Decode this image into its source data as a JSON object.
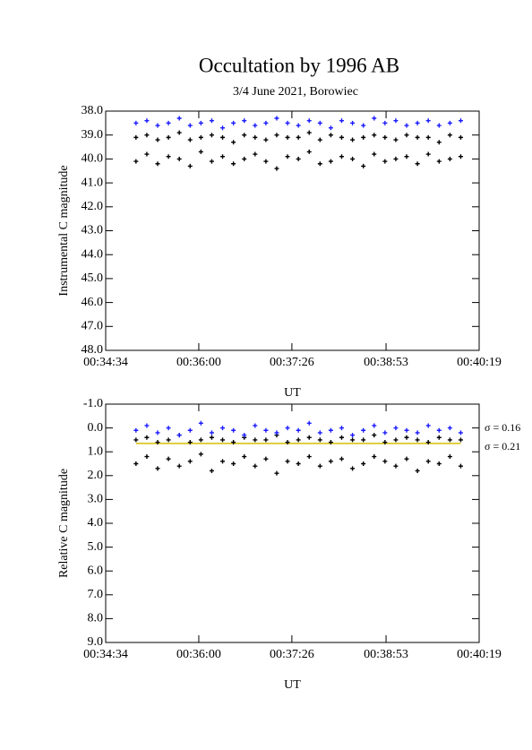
{
  "chart_data": [
    {
      "type": "scatter",
      "title": "Occultation by 1996 AB",
      "subtitle": "3/4 June 2021, Borowiec",
      "xlabel": "UT",
      "ylabel": "Instrumental C magnitude",
      "xlim": [
        2074,
        2419
      ],
      "xticks": [
        {
          "value": 2074,
          "label": "00:34:34"
        },
        {
          "value": 2160,
          "label": "00:36:00"
        },
        {
          "value": 2246,
          "label": "00:37:26"
        },
        {
          "value": 2333,
          "label": "00:38:53"
        },
        {
          "value": 2419,
          "label": "00:40:19"
        }
      ],
      "ylim": [
        48,
        38
      ],
      "yticks": [
        {
          "value": 38,
          "label": "38.0"
        },
        {
          "value": 39,
          "label": "39.0"
        },
        {
          "value": 40,
          "label": "40.0"
        },
        {
          "value": 41,
          "label": "41.0"
        },
        {
          "value": 42,
          "label": "42.0"
        },
        {
          "value": 43,
          "label": "43.0"
        },
        {
          "value": 44,
          "label": "44.0"
        },
        {
          "value": 45,
          "label": "45.0"
        },
        {
          "value": 46,
          "label": "46.0"
        },
        {
          "value": 47,
          "label": "47.0"
        },
        {
          "value": 48,
          "label": "48.0"
        }
      ],
      "x": [
        2102,
        2112,
        2122,
        2132,
        2142,
        2152,
        2162,
        2172,
        2182,
        2192,
        2202,
        2212,
        2222,
        2232,
        2242,
        2252,
        2262,
        2272,
        2282,
        2292,
        2302,
        2312,
        2322,
        2332,
        2342,
        2352,
        2362,
        2372,
        2382,
        2392,
        2402
      ],
      "series": [
        {
          "color": "#000000",
          "values": [
            40.1,
            39.8,
            40.2,
            39.9,
            40.0,
            40.3,
            39.7,
            40.1,
            39.9,
            40.2,
            40.0,
            39.8,
            40.1,
            40.4,
            39.9,
            40.0,
            39.7,
            40.2,
            40.1,
            39.9,
            40.0,
            40.3,
            39.8,
            40.1,
            40.0,
            39.9,
            40.2,
            39.8,
            40.1,
            40.0,
            39.9
          ]
        },
        {
          "color": "#000000",
          "values": [
            39.1,
            39.0,
            39.2,
            39.1,
            38.9,
            39.2,
            39.1,
            39.0,
            39.1,
            39.3,
            39.0,
            39.1,
            39.2,
            39.0,
            39.1,
            39.1,
            38.9,
            39.2,
            39.0,
            39.1,
            39.2,
            39.1,
            39.0,
            39.1,
            39.2,
            39.0,
            39.1,
            39.1,
            39.3,
            39.0,
            39.1
          ]
        },
        {
          "color": "#1a1aff",
          "values": [
            38.5,
            38.4,
            38.6,
            38.5,
            38.3,
            38.6,
            38.5,
            38.4,
            38.7,
            38.5,
            38.4,
            38.6,
            38.5,
            38.3,
            38.5,
            38.6,
            38.4,
            38.5,
            38.7,
            38.4,
            38.5,
            38.6,
            38.3,
            38.5,
            38.4,
            38.6,
            38.5,
            38.4,
            38.6,
            38.5,
            38.4
          ]
        }
      ]
    },
    {
      "type": "scatter",
      "xlabel": "UT",
      "ylabel": "Relative C magnitude",
      "xlim": [
        2074,
        2419
      ],
      "xticks": [
        {
          "value": 2074,
          "label": "00:34:34"
        },
        {
          "value": 2160,
          "label": "00:36:00"
        },
        {
          "value": 2246,
          "label": "00:37:26"
        },
        {
          "value": 2333,
          "label": "00:38:53"
        },
        {
          "value": 2419,
          "label": "00:40:19"
        }
      ],
      "ylim": [
        9,
        -1
      ],
      "yticks": [
        {
          "value": -1,
          "label": "-1.0"
        },
        {
          "value": 0,
          "label": "0.0"
        },
        {
          "value": 1,
          "label": "1.0"
        },
        {
          "value": 2,
          "label": "2.0"
        },
        {
          "value": 3,
          "label": "3.0"
        },
        {
          "value": 4,
          "label": "4.0"
        },
        {
          "value": 5,
          "label": "5.0"
        },
        {
          "value": 6,
          "label": "6.0"
        },
        {
          "value": 7,
          "label": "7.0"
        },
        {
          "value": 8,
          "label": "8.0"
        },
        {
          "value": 9,
          "label": "9.0"
        }
      ],
      "x": [
        2102,
        2112,
        2122,
        2132,
        2142,
        2152,
        2162,
        2172,
        2182,
        2192,
        2202,
        2212,
        2222,
        2232,
        2242,
        2252,
        2262,
        2272,
        2282,
        2292,
        2302,
        2312,
        2322,
        2332,
        2342,
        2352,
        2362,
        2372,
        2382,
        2392,
        2402
      ],
      "series": [
        {
          "color": "#000000",
          "values": [
            1.5,
            1.2,
            1.7,
            1.3,
            1.6,
            1.4,
            1.1,
            1.8,
            1.4,
            1.5,
            1.2,
            1.6,
            1.3,
            1.9,
            1.4,
            1.5,
            1.2,
            1.6,
            1.4,
            1.3,
            1.7,
            1.5,
            1.2,
            1.4,
            1.6,
            1.3,
            1.8,
            1.4,
            1.5,
            1.2,
            1.6
          ]
        },
        {
          "color": "#000000",
          "values": [
            0.5,
            0.4,
            0.6,
            0.5,
            0.3,
            0.6,
            0.5,
            0.4,
            0.5,
            0.6,
            0.4,
            0.5,
            0.5,
            0.3,
            0.6,
            0.5,
            0.4,
            0.5,
            0.6,
            0.4,
            0.5,
            0.5,
            0.3,
            0.6,
            0.5,
            0.4,
            0.5,
            0.6,
            0.4,
            0.5,
            0.5
          ]
        },
        {
          "color": "#1a1aff",
          "values": [
            0.1,
            -0.1,
            0.2,
            0.0,
            0.3,
            0.1,
            -0.2,
            0.2,
            0.0,
            0.1,
            0.3,
            -0.1,
            0.1,
            0.2,
            0.0,
            0.1,
            -0.2,
            0.2,
            0.1,
            0.0,
            0.3,
            0.1,
            -0.1,
            0.2,
            0.0,
            0.1,
            0.2,
            -0.1,
            0.1,
            0.0,
            0.2
          ]
        }
      ],
      "reference_lines": [
        0.65
      ],
      "reference_color": "#d4c000",
      "annotations": [
        "σ = 0.16",
        "σ = 0.21"
      ]
    }
  ]
}
